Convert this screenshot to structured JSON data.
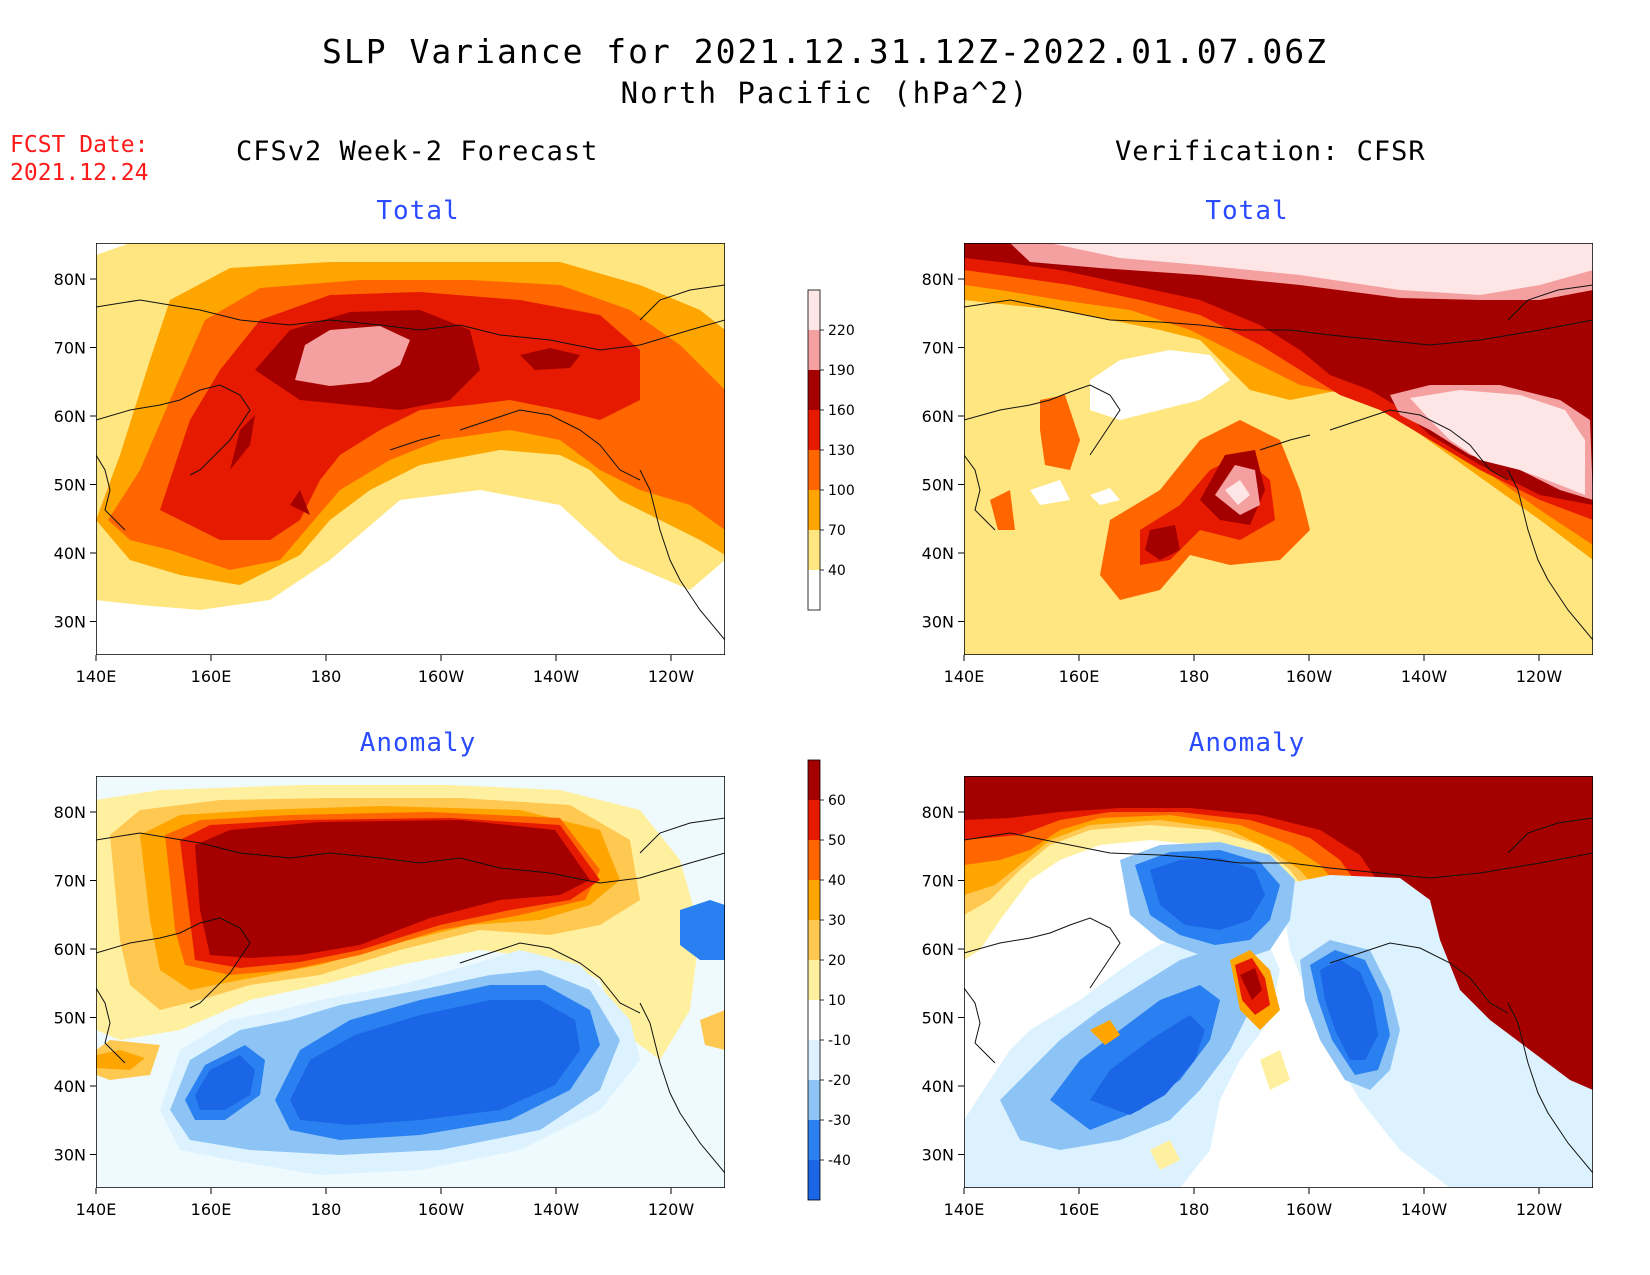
{
  "title": {
    "line1": "SLP Variance for 2021.12.31.12Z-2022.01.07.06Z",
    "line2": "North Pacific (hPa^2)"
  },
  "forecast_date": {
    "label": "FCST Date:",
    "value": "2021.12.24"
  },
  "columns": {
    "left_heading": "CFSv2 Week-2 Forecast",
    "right_heading": "Verification: CFSR"
  },
  "panels": [
    {
      "id": "fcst-total",
      "subtitle": "Total"
    },
    {
      "id": "verif-total",
      "subtitle": "Total"
    },
    {
      "id": "fcst-anomaly",
      "subtitle": "Anomaly"
    },
    {
      "id": "verif-anomaly",
      "subtitle": "Anomaly"
    }
  ],
  "axes": {
    "longitude_ticks": [
      "140E",
      "160E",
      "180",
      "160W",
      "140W",
      "120W"
    ],
    "latitude_ticks": [
      "80N",
      "70N",
      "60N",
      "50N",
      "40N",
      "30N"
    ]
  },
  "colorbars": {
    "total": {
      "levels": [
        "40",
        "70",
        "100",
        "130",
        "160",
        "190",
        "220"
      ],
      "colors": [
        "#ffffff",
        "#ffe680",
        "#ffa500",
        "#ff6600",
        "#e61a00",
        "#a50000",
        "#f4a0a0",
        "#ffe6e6"
      ]
    },
    "anomaly": {
      "levels": [
        "-40",
        "-30",
        "-20",
        "-10",
        "10",
        "20",
        "30",
        "40",
        "50",
        "60"
      ],
      "colors": [
        "#1a66e6",
        "#2a80f0",
        "#8ec4f5",
        "#dcf3ff",
        "#ffffff",
        "#fff0a0",
        "#ffc850",
        "#ffa500",
        "#ff6600",
        "#e61a00",
        "#a50000"
      ]
    }
  }
}
